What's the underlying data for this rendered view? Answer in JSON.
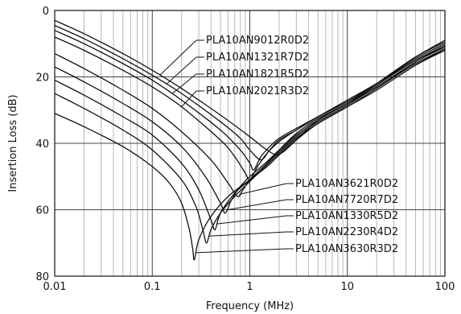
{
  "chart_data": {
    "type": "line",
    "xlabel": "Frequency (MHz)",
    "ylabel": "Insertion Loss (dB)",
    "xscale": "log",
    "xlim": [
      0.01,
      100
    ],
    "ylim": [
      0,
      80
    ],
    "y_inverted": true,
    "x_ticks": [
      {
        "value": 0.01,
        "label": "0.01"
      },
      {
        "value": 0.1,
        "label": "0.1"
      },
      {
        "value": 1,
        "label": "1"
      },
      {
        "value": 10,
        "label": "10"
      },
      {
        "value": 100,
        "label": "100"
      }
    ],
    "y_ticks": [
      {
        "value": 0,
        "label": "0"
      },
      {
        "value": 20,
        "label": "20"
      },
      {
        "value": 40,
        "label": "40"
      },
      {
        "value": 60,
        "label": "60"
      },
      {
        "value": 80,
        "label": "80"
      }
    ],
    "grid": true,
    "colors": {
      "line": "#111111",
      "grid": "#b8b8b8",
      "grid_major": "#444444"
    },
    "series": [
      {
        "name": "PLA10AN9012R0D2",
        "label_group": "upper",
        "points": [
          [
            0.01,
            3
          ],
          [
            0.02,
            7
          ],
          [
            0.05,
            13
          ],
          [
            0.1,
            18
          ],
          [
            0.2,
            23.5
          ],
          [
            0.5,
            31.5
          ],
          [
            1,
            38
          ],
          [
            1.5,
            42
          ],
          [
            2,
            43.3
          ],
          [
            3,
            39
          ],
          [
            5,
            33
          ],
          [
            10,
            28
          ],
          [
            20,
            22
          ],
          [
            50,
            14
          ],
          [
            100,
            9
          ]
        ]
      },
      {
        "name": "PLA10AN1321R7D2",
        "label_group": "upper",
        "points": [
          [
            0.01,
            4.5
          ],
          [
            0.02,
            8.5
          ],
          [
            0.05,
            14.5
          ],
          [
            0.1,
            19.5
          ],
          [
            0.2,
            25
          ],
          [
            0.5,
            33.5
          ],
          [
            0.8,
            38.5
          ],
          [
            1,
            42
          ],
          [
            1.3,
            45
          ],
          [
            1.6,
            42
          ],
          [
            2,
            39
          ],
          [
            3,
            36
          ],
          [
            5,
            32
          ],
          [
            10,
            27.5
          ],
          [
            20,
            22
          ],
          [
            50,
            14
          ],
          [
            100,
            9.5
          ]
        ]
      },
      {
        "name": "PLA10AN1821R5D2",
        "label_group": "upper",
        "points": [
          [
            0.01,
            6
          ],
          [
            0.02,
            10
          ],
          [
            0.05,
            16
          ],
          [
            0.1,
            21
          ],
          [
            0.2,
            27
          ],
          [
            0.5,
            36
          ],
          [
            0.8,
            42
          ],
          [
            1,
            46
          ],
          [
            1.1,
            48
          ],
          [
            1.3,
            44
          ],
          [
            1.6,
            41
          ],
          [
            2,
            38.5
          ],
          [
            3,
            35.5
          ],
          [
            5,
            32
          ],
          [
            10,
            27
          ],
          [
            20,
            22
          ],
          [
            50,
            14.5
          ],
          [
            100,
            10
          ]
        ]
      },
      {
        "name": "PLA10AN2021R3D2",
        "label_group": "upper",
        "points": [
          [
            0.01,
            8
          ],
          [
            0.02,
            12
          ],
          [
            0.05,
            18
          ],
          [
            0.1,
            23
          ],
          [
            0.2,
            29
          ],
          [
            0.5,
            39
          ],
          [
            0.7,
            44
          ],
          [
            0.9,
            49
          ],
          [
            1.0,
            51
          ],
          [
            1.2,
            47
          ],
          [
            1.5,
            43
          ],
          [
            2,
            39.5
          ],
          [
            3,
            36
          ],
          [
            5,
            32
          ],
          [
            10,
            27
          ],
          [
            20,
            22
          ],
          [
            50,
            15
          ],
          [
            100,
            10.5
          ]
        ]
      },
      {
        "name": "PLA10AN3621R0D2",
        "label_group": "lower",
        "points": [
          [
            0.01,
            13
          ],
          [
            0.02,
            17.5
          ],
          [
            0.05,
            24
          ],
          [
            0.1,
            29.5
          ],
          [
            0.2,
            36.5
          ],
          [
            0.4,
            45
          ],
          [
            0.6,
            52
          ],
          [
            0.75,
            56
          ],
          [
            0.85,
            54
          ],
          [
            1,
            51
          ],
          [
            1.5,
            46
          ],
          [
            2,
            42
          ],
          [
            3,
            37
          ],
          [
            5,
            32.5
          ],
          [
            10,
            28
          ],
          [
            20,
            22.5
          ],
          [
            50,
            15
          ],
          [
            100,
            11
          ]
        ]
      },
      {
        "name": "PLA10AN7720R7D2",
        "label_group": "lower",
        "points": [
          [
            0.01,
            17
          ],
          [
            0.02,
            21.5
          ],
          [
            0.05,
            28
          ],
          [
            0.1,
            33.5
          ],
          [
            0.2,
            41
          ],
          [
            0.35,
            50
          ],
          [
            0.5,
            58
          ],
          [
            0.56,
            61
          ],
          [
            0.65,
            57
          ],
          [
            0.8,
            53
          ],
          [
            1,
            50
          ],
          [
            1.5,
            45.5
          ],
          [
            2,
            42
          ],
          [
            3,
            37.5
          ],
          [
            5,
            33
          ],
          [
            10,
            28
          ],
          [
            20,
            23
          ],
          [
            50,
            15.5
          ],
          [
            100,
            11
          ]
        ]
      },
      {
        "name": "PLA10AN1330R5D2",
        "label_group": "lower",
        "points": [
          [
            0.01,
            21
          ],
          [
            0.02,
            25.5
          ],
          [
            0.05,
            32
          ],
          [
            0.1,
            37.5
          ],
          [
            0.2,
            46
          ],
          [
            0.3,
            54
          ],
          [
            0.4,
            63
          ],
          [
            0.44,
            66
          ],
          [
            0.5,
            61
          ],
          [
            0.7,
            55
          ],
          [
            1,
            51
          ],
          [
            1.5,
            46
          ],
          [
            2,
            42.5
          ],
          [
            3,
            38
          ],
          [
            5,
            33.5
          ],
          [
            10,
            28.5
          ],
          [
            20,
            23
          ],
          [
            50,
            16
          ],
          [
            100,
            11.5
          ]
        ]
      },
      {
        "name": "PLA10AN2230R4D2",
        "label_group": "lower",
        "points": [
          [
            0.01,
            25
          ],
          [
            0.02,
            29.5
          ],
          [
            0.05,
            36
          ],
          [
            0.1,
            42
          ],
          [
            0.2,
            51
          ],
          [
            0.28,
            59
          ],
          [
            0.33,
            66
          ],
          [
            0.36,
            70
          ],
          [
            0.4,
            66
          ],
          [
            0.5,
            61
          ],
          [
            0.7,
            56
          ],
          [
            1,
            51.5
          ],
          [
            1.5,
            46.5
          ],
          [
            2,
            43
          ],
          [
            3,
            38.5
          ],
          [
            5,
            34
          ],
          [
            10,
            29
          ],
          [
            20,
            23.5
          ],
          [
            50,
            16
          ],
          [
            100,
            12
          ]
        ]
      },
      {
        "name": "PLA10AN3630R3D2",
        "label_group": "lower",
        "points": [
          [
            0.01,
            31
          ],
          [
            0.02,
            35
          ],
          [
            0.05,
            41
          ],
          [
            0.1,
            47
          ],
          [
            0.15,
            52
          ],
          [
            0.2,
            58
          ],
          [
            0.24,
            66
          ],
          [
            0.26,
            72
          ],
          [
            0.27,
            75
          ],
          [
            0.3,
            69
          ],
          [
            0.4,
            62
          ],
          [
            0.6,
            56
          ],
          [
            1,
            51
          ],
          [
            1.5,
            47
          ],
          [
            2,
            43.5
          ],
          [
            3,
            39
          ],
          [
            5,
            34
          ],
          [
            10,
            29
          ],
          [
            20,
            24
          ],
          [
            50,
            16.5
          ],
          [
            100,
            12
          ]
        ]
      }
    ]
  }
}
